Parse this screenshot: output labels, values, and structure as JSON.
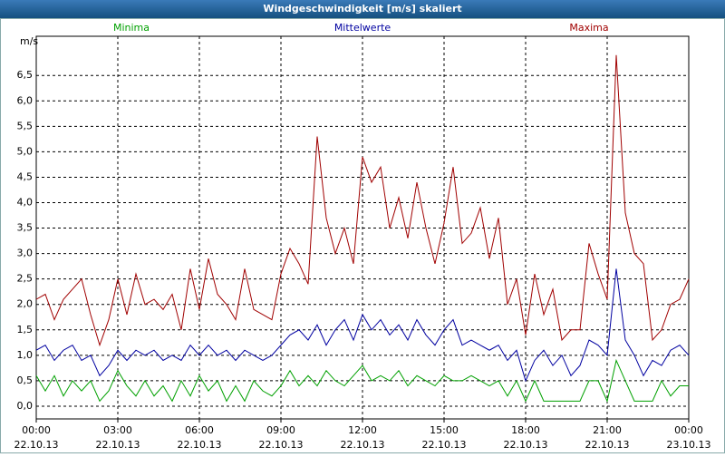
{
  "chart_data": {
    "type": "line",
    "title": "Windgeschwindigkeit [m/s] skaliert",
    "y_label": "m/s",
    "x": [
      0,
      20,
      40,
      60,
      80,
      100,
      120,
      140,
      160,
      180,
      200,
      220,
      240,
      260,
      280,
      300,
      320,
      340,
      360,
      380,
      400,
      420,
      440,
      460,
      480,
      500,
      520,
      540,
      560,
      580,
      600,
      620,
      640,
      660,
      680,
      700,
      720,
      740,
      760,
      780,
      800,
      820,
      840,
      860,
      880,
      900,
      920,
      940,
      960,
      980,
      1000,
      1020,
      1040,
      1060,
      1080,
      1100,
      1120,
      1140,
      1160,
      1180,
      1200,
      1220,
      1240,
      1260,
      1280,
      1300,
      1320,
      1340,
      1360,
      1380,
      1400,
      1420,
      1440
    ],
    "series": [
      {
        "name": "Minima",
        "color": "#00a000",
        "values": [
          0.6,
          0.3,
          0.6,
          0.2,
          0.5,
          0.3,
          0.5,
          0.1,
          0.3,
          0.7,
          0.4,
          0.2,
          0.5,
          0.2,
          0.4,
          0.1,
          0.5,
          0.2,
          0.6,
          0.3,
          0.5,
          0.1,
          0.4,
          0.1,
          0.5,
          0.3,
          0.2,
          0.4,
          0.7,
          0.4,
          0.6,
          0.4,
          0.7,
          0.5,
          0.4,
          0.6,
          0.8,
          0.5,
          0.6,
          0.5,
          0.7,
          0.4,
          0.6,
          0.5,
          0.4,
          0.6,
          0.5,
          0.5,
          0.6,
          0.5,
          0.4,
          0.5,
          0.2,
          0.5,
          0.1,
          0.5,
          0.1,
          0.1,
          0.1,
          0.1,
          0.1,
          0.5,
          0.5,
          0.1,
          0.9,
          0.5,
          0.1,
          0.1,
          0.1,
          0.5,
          0.2,
          0.4,
          0.4
        ]
      },
      {
        "name": "Mittelwerte",
        "color": "#0000a0",
        "values": [
          1.1,
          1.2,
          0.9,
          1.1,
          1.2,
          0.9,
          1.0,
          0.6,
          0.8,
          1.1,
          0.9,
          1.1,
          1.0,
          1.1,
          0.9,
          1.0,
          0.9,
          1.2,
          1.0,
          1.2,
          1.0,
          1.1,
          0.9,
          1.1,
          1.0,
          0.9,
          1.0,
          1.2,
          1.4,
          1.5,
          1.3,
          1.6,
          1.2,
          1.5,
          1.7,
          1.3,
          1.8,
          1.5,
          1.7,
          1.4,
          1.6,
          1.3,
          1.7,
          1.4,
          1.2,
          1.5,
          1.7,
          1.2,
          1.3,
          1.2,
          1.1,
          1.2,
          0.9,
          1.1,
          0.5,
          0.9,
          1.1,
          0.8,
          1.0,
          0.6,
          0.8,
          1.3,
          1.2,
          1.0,
          2.7,
          1.3,
          1.0,
          0.6,
          0.9,
          0.8,
          1.1,
          1.2,
          1.0
        ]
      },
      {
        "name": "Maxima",
        "color": "#a00000",
        "values": [
          2.1,
          2.2,
          1.7,
          2.1,
          2.3,
          2.5,
          1.8,
          1.2,
          1.7,
          2.5,
          1.8,
          2.6,
          2.0,
          2.1,
          1.9,
          2.2,
          1.5,
          2.7,
          1.9,
          2.9,
          2.2,
          2.0,
          1.7,
          2.7,
          1.9,
          1.8,
          1.7,
          2.6,
          3.1,
          2.8,
          2.4,
          5.3,
          3.7,
          3.0,
          3.5,
          2.8,
          4.9,
          4.4,
          4.7,
          3.5,
          4.1,
          3.3,
          4.4,
          3.5,
          2.8,
          3.6,
          4.7,
          3.2,
          3.4,
          3.9,
          2.9,
          3.7,
          2.0,
          2.5,
          1.4,
          2.6,
          1.8,
          2.3,
          1.3,
          1.5,
          1.5,
          3.2,
          2.6,
          2.1,
          6.9,
          3.8,
          3.0,
          2.8,
          1.3,
          1.5,
          2.0,
          2.1,
          2.5
        ]
      }
    ],
    "xlim": [
      0,
      1440
    ],
    "xticks": [
      {
        "value": 0,
        "label": "00:00",
        "date": "22.10.13"
      },
      {
        "value": 180,
        "label": "03:00",
        "date": "22.10.13"
      },
      {
        "value": 360,
        "label": "06:00",
        "date": "22.10.13"
      },
      {
        "value": 540,
        "label": "09:00",
        "date": "22.10.13"
      },
      {
        "value": 720,
        "label": "12:00",
        "date": "22.10.13"
      },
      {
        "value": 900,
        "label": "15:00",
        "date": "22.10.13"
      },
      {
        "value": 1080,
        "label": "18:00",
        "date": "22.10.13"
      },
      {
        "value": 1260,
        "label": "21:00",
        "date": "22.10.13"
      },
      {
        "value": 1440,
        "label": "00:00",
        "date": "23.10.13"
      }
    ],
    "ylim": [
      -0.25,
      7.27
    ],
    "yticks": [
      {
        "value": 0,
        "label": "0,0"
      },
      {
        "value": 0.5,
        "label": "0,5"
      },
      {
        "value": 1,
        "label": "1,0"
      },
      {
        "value": 1.5,
        "label": "1,5"
      },
      {
        "value": 2,
        "label": "2,0"
      },
      {
        "value": 2.5,
        "label": "2,5"
      },
      {
        "value": 3,
        "label": "3,0"
      },
      {
        "value": 3.5,
        "label": "3,5"
      },
      {
        "value": 4,
        "label": "4,0"
      },
      {
        "value": 4.5,
        "label": "4,5"
      },
      {
        "value": 5,
        "label": "5,0"
      },
      {
        "value": 5.5,
        "label": "5,5"
      },
      {
        "value": 6,
        "label": "6,0"
      },
      {
        "value": 6.5,
        "label": "6,5"
      }
    ],
    "grid": true
  }
}
